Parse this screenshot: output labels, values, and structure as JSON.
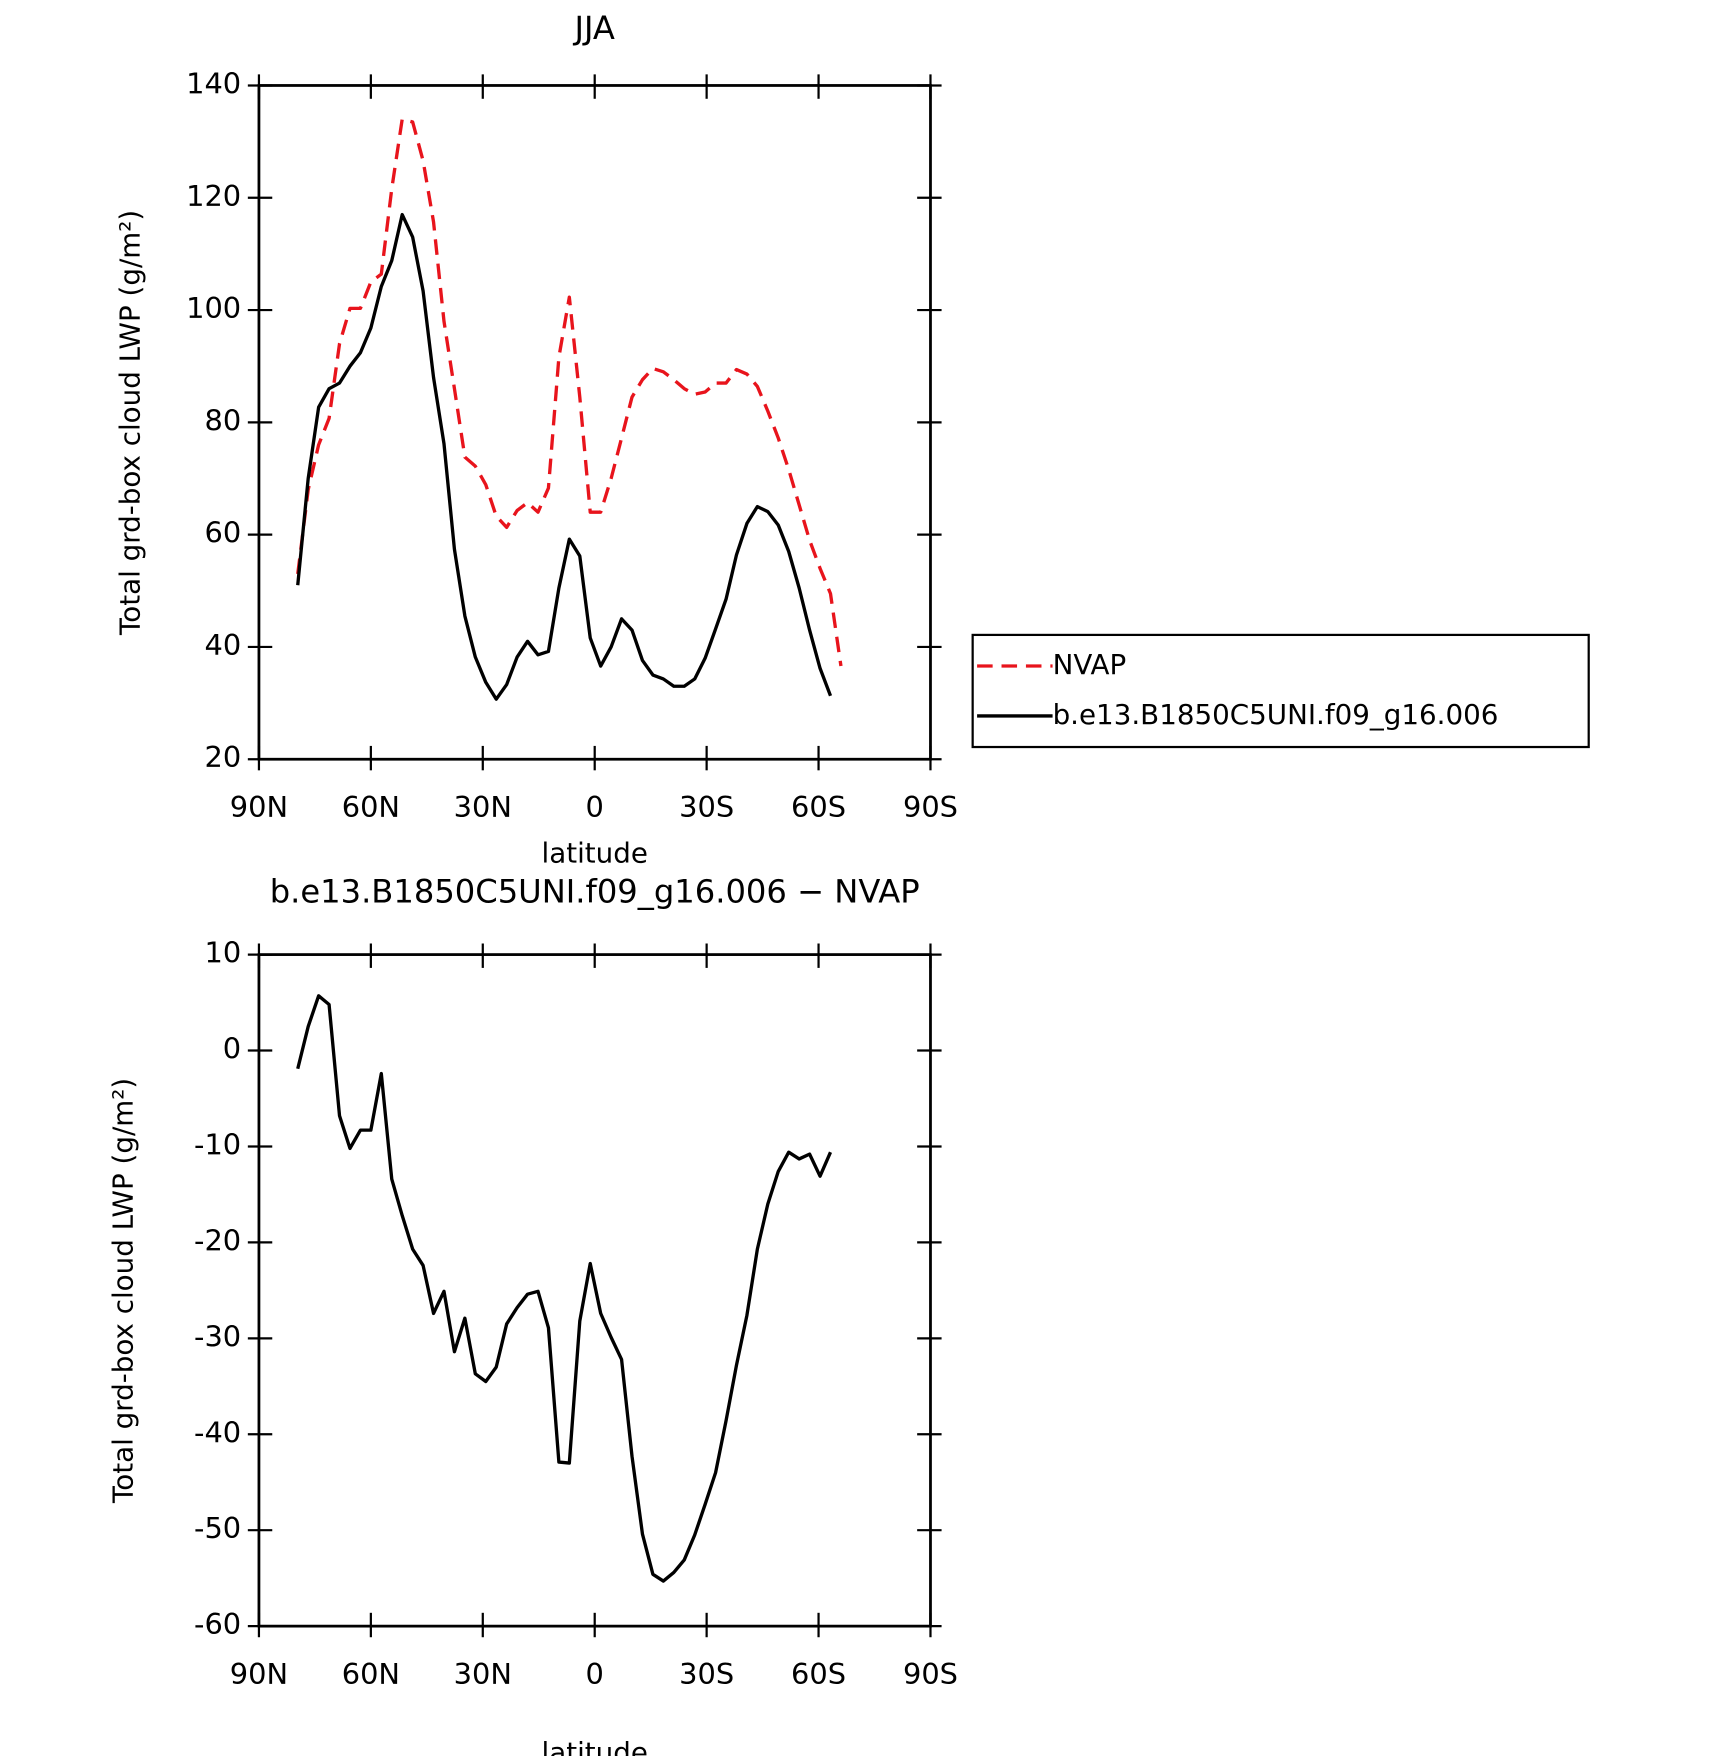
{
  "chart_data": [
    {
      "type": "line",
      "title": "JJA",
      "xlabel": "latitude",
      "ylabel": "Total grd-box cloud LWP (g/m²)",
      "x": [
        79.6,
        76.8,
        74,
        71.2,
        68.4,
        65.6,
        62.8,
        60,
        57.2,
        54.4,
        51.6,
        48.8,
        46,
        43.2,
        40.4,
        37.6,
        34.8,
        32,
        29.2,
        26.4,
        23.6,
        20.8,
        18,
        15.2,
        12.4,
        9.6,
        6.8,
        4,
        1.2,
        -1.6,
        -4.4,
        -7.2,
        -10,
        -12.8,
        -15.6,
        -18.4,
        -21.2,
        -24,
        -26.8,
        -29.6,
        -32.4,
        -35.2,
        -38,
        -40.8,
        -43.6,
        -46.4,
        -49.2,
        -52,
        -54.8,
        -57.6,
        -60.4,
        -63.2,
        -66
      ],
      "series": [
        {
          "name": "NVAP",
          "color": "#e8141c",
          "dashed": true,
          "values": [
            53,
            68,
            76,
            80.7,
            94,
            100.3,
            100.3,
            105,
            106.4,
            121.6,
            134,
            133.5,
            126.6,
            115.7,
            98,
            86,
            73.8,
            72.2,
            68.9,
            63.3,
            61.3,
            64.3,
            65.7,
            64,
            68.3,
            91.6,
            102.3,
            84.5,
            64,
            64,
            70,
            77.2,
            84.5,
            87.6,
            89.6,
            89,
            87.6,
            86,
            85,
            85.4,
            87,
            87,
            89.4,
            88.6,
            86.4,
            82,
            77.2,
            71.6,
            65.3,
            59,
            54,
            49.5,
            36.6
          ]
        },
        {
          "name": "b.e13.B1850C5UNI.f09_g16.006",
          "color": "#000000",
          "dashed": false,
          "values": [
            51,
            70,
            82.7,
            86,
            87,
            90,
            92.4,
            96.8,
            104.2,
            108.8,
            117,
            113,
            103.4,
            88,
            76.2,
            57.4,
            45.5,
            38.2,
            33.7,
            30.7,
            33.3,
            38.2,
            41,
            38.6,
            39.2,
            50.5,
            59.2,
            56.2,
            41.6,
            36.6,
            40,
            45,
            43,
            37.6,
            35,
            34.3,
            33,
            33,
            34.3,
            38,
            43.2,
            48.5,
            56.4,
            62,
            65,
            64.1,
            61.7,
            57,
            50.5,
            43,
            36.2,
            31.3,
            null
          ]
        }
      ],
      "xlim": [
        90,
        -90
      ],
      "xticks": [
        {
          "value": 90,
          "label": "90N"
        },
        {
          "value": 60,
          "label": "60N"
        },
        {
          "value": 30,
          "label": "30N"
        },
        0,
        {
          "value": -30,
          "label": "30S"
        },
        {
          "value": -60,
          "label": "60S"
        },
        {
          "value": -90,
          "label": "90S"
        }
      ],
      "ylim": [
        20,
        140
      ],
      "yticks": [
        20,
        40,
        60,
        80,
        100,
        120,
        140
      ],
      "legend": "outside-right"
    },
    {
      "type": "line",
      "title": "b.e13.B1850C5UNI.f09_g16.006 − NVAP",
      "xlabel": "latitude",
      "ylabel": "Total grd-box cloud LWP (g/m²)",
      "x": [
        79.6,
        76.8,
        74,
        71.2,
        68.4,
        65.6,
        62.8,
        60,
        57.2,
        54.4,
        51.6,
        48.8,
        46,
        43.2,
        40.4,
        37.6,
        34.8,
        32,
        29.2,
        26.4,
        23.6,
        20.8,
        18,
        15.2,
        12.4,
        9.6,
        6.8,
        4,
        1.2,
        -1.6,
        -4.4,
        -7.2,
        -10,
        -12.8,
        -15.6,
        -18.4,
        -21.2,
        -24,
        -26.8,
        -29.6,
        -32.4,
        -35.2,
        -38,
        -40.8,
        -43.6,
        -46.4,
        -49.2,
        -52,
        -54.8,
        -57.6,
        -60.4,
        -63.2,
        -66
      ],
      "color": "#000000",
      "values": [
        -1.9,
        2.5,
        5.7,
        4.8,
        -6.8,
        -10.2,
        -8.3,
        -8.3,
        -2.4,
        -13.4,
        -17.2,
        -20.7,
        -22.4,
        -27.4,
        -25.1,
        -31.4,
        -27.9,
        -33.7,
        -34.5,
        -33,
        -28.5,
        -26.8,
        -25.4,
        -25.1,
        -28.9,
        -42.9,
        -43,
        -28.2,
        -22.2,
        -27.4,
        -29.9,
        -32.2,
        -42.3,
        -50.4,
        -54.6,
        -55.3,
        -54.4,
        -53.1,
        -50.5,
        -47.3,
        -44,
        -38.6,
        -32.8,
        -27.6,
        -20.7,
        -16,
        -12.6,
        -10.6,
        -11.3,
        -10.8,
        -13.1,
        -10.6,
        null
      ],
      "xlim": [
        90,
        -90
      ],
      "xticks": [
        {
          "value": 90,
          "label": "90N"
        },
        {
          "value": 60,
          "label": "60N"
        },
        {
          "value": 30,
          "label": "30N"
        },
        0,
        {
          "value": -30,
          "label": "30S"
        },
        {
          "value": -60,
          "label": "60S"
        },
        {
          "value": -90,
          "label": "90S"
        }
      ],
      "ylim": [
        -60,
        10
      ],
      "yticks": [
        -60,
        -50,
        -40,
        -30,
        -20,
        -10,
        0,
        10
      ]
    }
  ]
}
